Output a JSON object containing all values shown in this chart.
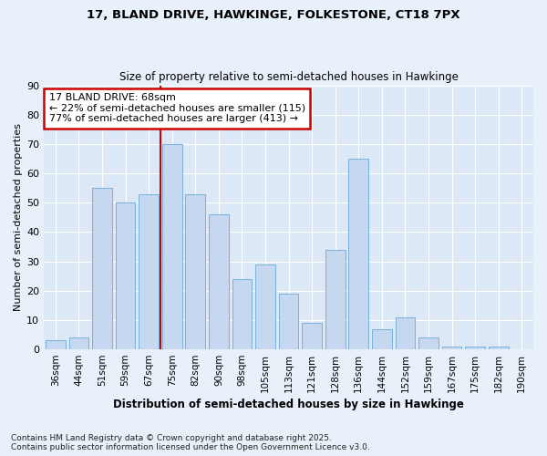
{
  "title1": "17, BLAND DRIVE, HAWKINGE, FOLKESTONE, CT18 7PX",
  "title2": "Size of property relative to semi-detached houses in Hawkinge",
  "xlabel": "Distribution of semi-detached houses by size in Hawkinge",
  "ylabel": "Number of semi-detached properties",
  "categories": [
    "36sqm",
    "44sqm",
    "51sqm",
    "59sqm",
    "67sqm",
    "75sqm",
    "82sqm",
    "90sqm",
    "98sqm",
    "105sqm",
    "113sqm",
    "121sqm",
    "128sqm",
    "136sqm",
    "144sqm",
    "152sqm",
    "159sqm",
    "167sqm",
    "175sqm",
    "182sqm",
    "190sqm"
  ],
  "values": [
    3,
    4,
    55,
    50,
    53,
    70,
    53,
    46,
    24,
    29,
    19,
    9,
    34,
    65,
    7,
    11,
    4,
    1,
    1,
    1,
    0
  ],
  "bar_color": "#c5d8f0",
  "bar_edge_color": "#7ab0d8",
  "annotation_line1": "17 BLAND DRIVE: 68sqm",
  "annotation_line2": "← 22% of semi-detached houses are smaller (115)",
  "annotation_line3": "77% of semi-detached houses are larger (413) →",
  "annotation_box_color": "#ffffff",
  "annotation_box_edge_color": "#cc0000",
  "red_line_color": "#cc0000",
  "ylim": [
    0,
    90
  ],
  "yticks": [
    0,
    10,
    20,
    30,
    40,
    50,
    60,
    70,
    80,
    90
  ],
  "footnote": "Contains HM Land Registry data © Crown copyright and database right 2025.\nContains public sector information licensed under the Open Government Licence v3.0.",
  "bg_color": "#e8f0fa",
  "plot_bg_color": "#dce8f5"
}
